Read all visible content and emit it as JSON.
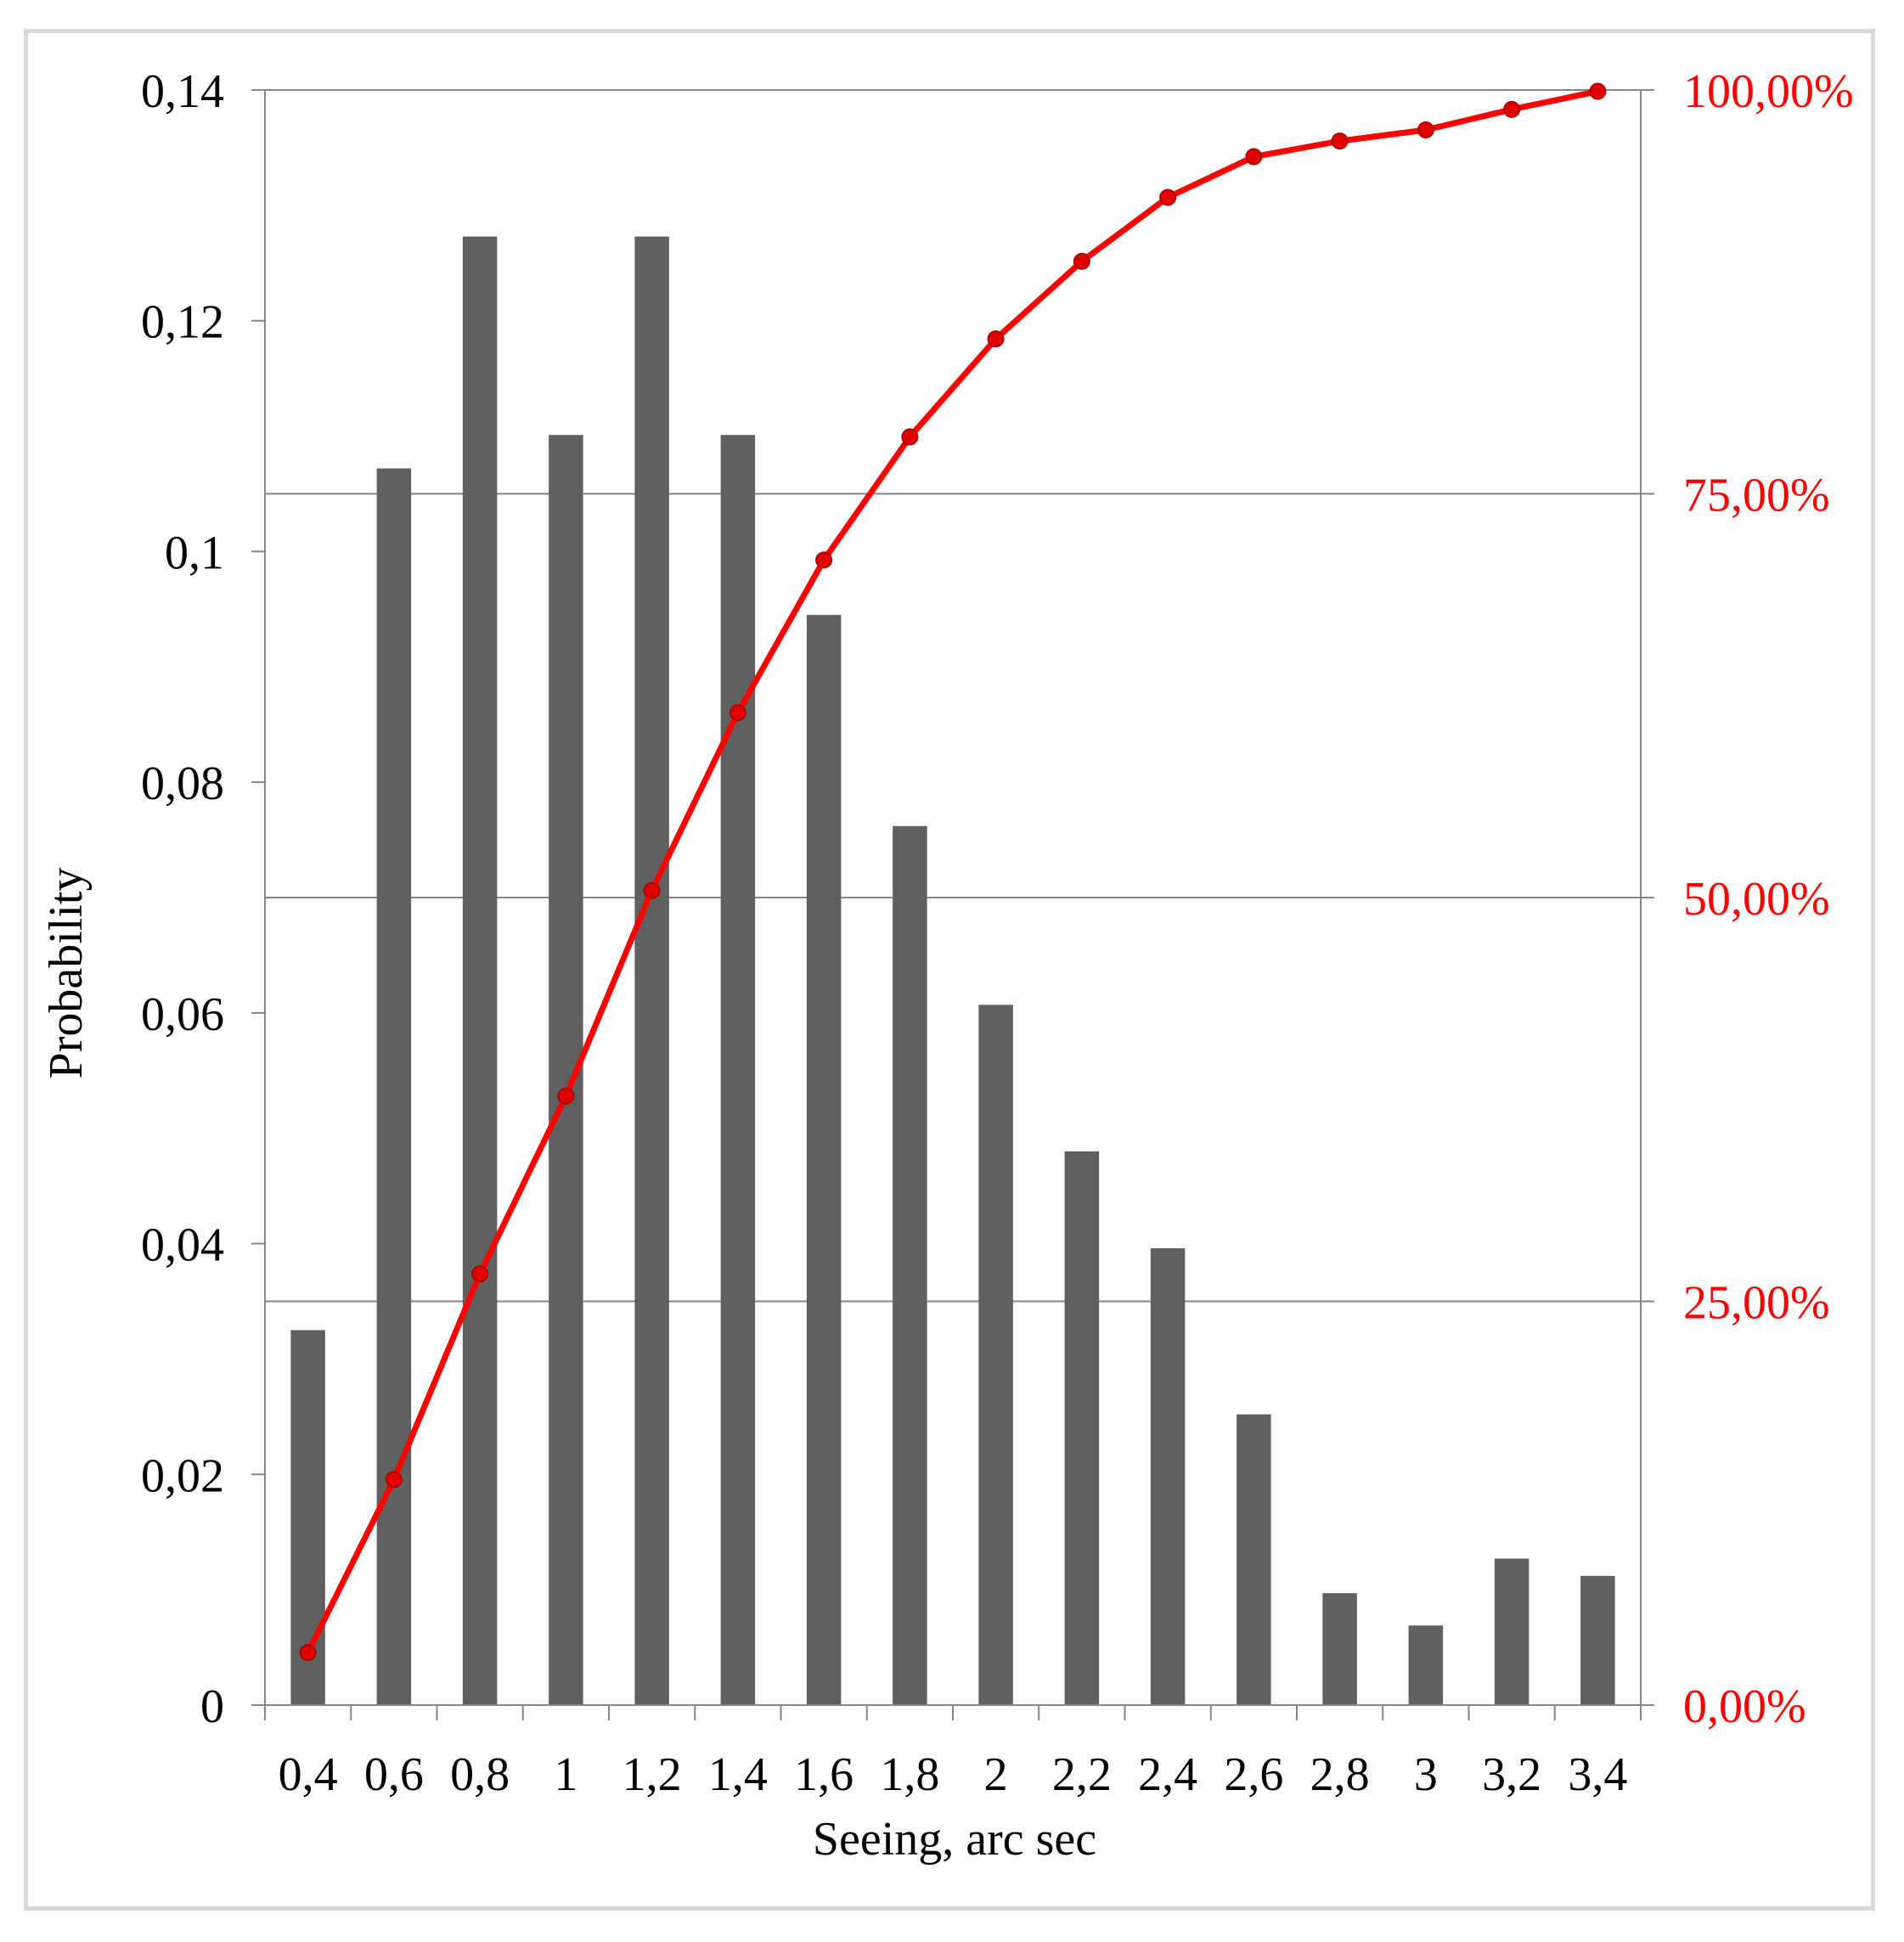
{
  "chart_data": {
    "type": "bar",
    "xlabel": "Seeing, arc sec",
    "ylabel": "Probability",
    "categories": [
      "0,4",
      "0,6",
      "0,8",
      "1",
      "1,2",
      "1,4",
      "1,6",
      "1,8",
      "2",
      "2,2",
      "2,4",
      "2,6",
      "2,8",
      "3",
      "3,2",
      "3,4"
    ],
    "ylim": [
      0,
      0.14
    ],
    "yticks": [
      "0",
      "0,02",
      "0,04",
      "0,06",
      "0,08",
      "0,1",
      "0,12",
      "0,14"
    ],
    "y2lim": [
      0,
      1
    ],
    "y2ticks": [
      "0,00%",
      "25,00%",
      "50,00%",
      "75,00%",
      "100,00%"
    ],
    "grid": "right-axis major gridlines",
    "series": [
      {
        "type": "bar",
        "axis": "left",
        "color": "#606060",
        "values": [
          0.0325,
          0.1072,
          0.1273,
          0.1101,
          0.1273,
          0.1101,
          0.0945,
          0.0762,
          0.0607,
          0.048,
          0.0396,
          0.0252,
          0.0097,
          0.0069,
          0.0127,
          0.0112
        ]
      },
      {
        "type": "line",
        "axis": "right",
        "color": "#ff0000",
        "values": [
          0.0325,
          0.1397,
          0.267,
          0.3771,
          0.5044,
          0.6145,
          0.709,
          0.7852,
          0.8459,
          0.8939,
          0.9335,
          0.9587,
          0.9684,
          0.9753,
          0.988,
          0.9992
        ]
      }
    ]
  }
}
